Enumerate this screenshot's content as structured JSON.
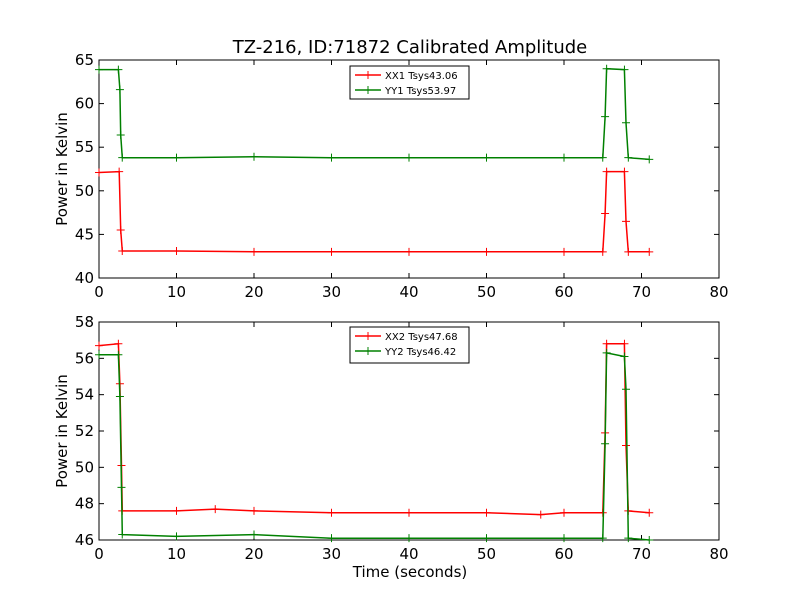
{
  "figure": {
    "title": "TZ-216, ID:71872 Calibrated Amplitude",
    "xlabel": "Time (seconds)"
  },
  "chart_data": [
    {
      "type": "line",
      "title": "TZ-216, ID:71872 Calibrated Amplitude",
      "xlabel": "",
      "ylabel": "Power in Kelvin",
      "xlim": [
        0,
        80
      ],
      "ylim": [
        40,
        65
      ],
      "xticks": [
        "0",
        "10",
        "20",
        "30",
        "40",
        "50",
        "60",
        "70",
        "80"
      ],
      "yticks": [
        "40",
        "45",
        "50",
        "55",
        "60",
        "65"
      ],
      "grid": false,
      "legend_position": "top-center",
      "series": [
        {
          "name": "XX1 Tsys43.06",
          "color": "#ff0000",
          "marker": "plus",
          "points": [
            [
              0,
              52.1
            ],
            [
              2.6,
              52.2
            ],
            [
              2.8,
              45.5
            ],
            [
              3,
              43.1
            ],
            [
              10,
              43.1
            ],
            [
              20,
              43.0
            ],
            [
              30,
              43.0
            ],
            [
              40,
              43.0
            ],
            [
              50,
              43.0
            ],
            [
              60,
              43.0
            ],
            [
              65,
              43.0
            ],
            [
              65.3,
              47.4
            ],
            [
              65.5,
              52.2
            ],
            [
              67.8,
              52.2
            ],
            [
              68,
              46.5
            ],
            [
              68.3,
              43.0
            ],
            [
              71,
              43.0
            ]
          ]
        },
        {
          "name": "YY1 Tsys53.97",
          "color": "#008000",
          "marker": "plus",
          "points": [
            [
              0,
              63.9
            ],
            [
              2.5,
              63.9
            ],
            [
              2.7,
              61.6
            ],
            [
              2.8,
              56.4
            ],
            [
              3,
              53.8
            ],
            [
              10,
              53.8
            ],
            [
              20,
              53.9
            ],
            [
              30,
              53.8
            ],
            [
              40,
              53.8
            ],
            [
              50,
              53.8
            ],
            [
              60,
              53.8
            ],
            [
              65,
              53.8
            ],
            [
              65.3,
              58.5
            ],
            [
              65.5,
              64.0
            ],
            [
              67.8,
              63.9
            ],
            [
              68,
              57.8
            ],
            [
              68.3,
              53.8
            ],
            [
              71,
              53.6
            ]
          ]
        }
      ]
    },
    {
      "type": "line",
      "title": "",
      "xlabel": "Time (seconds)",
      "ylabel": "Power in Kelvin",
      "xlim": [
        0,
        80
      ],
      "ylim": [
        46,
        58
      ],
      "xticks": [
        "0",
        "10",
        "20",
        "30",
        "40",
        "50",
        "60",
        "70",
        "80"
      ],
      "yticks": [
        "46",
        "48",
        "50",
        "52",
        "54",
        "56",
        "58"
      ],
      "grid": false,
      "legend_position": "top-center",
      "series": [
        {
          "name": "XX2 Tsys47.68",
          "color": "#ff0000",
          "marker": "plus",
          "points": [
            [
              0,
              56.7
            ],
            [
              2.5,
              56.8
            ],
            [
              2.7,
              54.6
            ],
            [
              2.9,
              50.1
            ],
            [
              3,
              47.6
            ],
            [
              10,
              47.6
            ],
            [
              15,
              47.7
            ],
            [
              20,
              47.6
            ],
            [
              30,
              47.5
            ],
            [
              40,
              47.5
            ],
            [
              50,
              47.5
            ],
            [
              57,
              47.4
            ],
            [
              60,
              47.5
            ],
            [
              65,
              47.5
            ],
            [
              65.3,
              51.9
            ],
            [
              65.5,
              56.8
            ],
            [
              67.8,
              56.8
            ],
            [
              68,
              51.2
            ],
            [
              68.3,
              47.6
            ],
            [
              71,
              47.5
            ]
          ]
        },
        {
          "name": "YY2 Tsys46.42",
          "color": "#008000",
          "marker": "plus",
          "points": [
            [
              0,
              56.2
            ],
            [
              2.5,
              56.2
            ],
            [
              2.7,
              53.9
            ],
            [
              2.9,
              48.9
            ],
            [
              3,
              46.3
            ],
            [
              10,
              46.2
            ],
            [
              20,
              46.3
            ],
            [
              30,
              46.1
            ],
            [
              40,
              46.1
            ],
            [
              50,
              46.1
            ],
            [
              60,
              46.1
            ],
            [
              65,
              46.1
            ],
            [
              65.3,
              51.3
            ],
            [
              65.5,
              56.3
            ],
            [
              67.8,
              56.1
            ],
            [
              68,
              54.3
            ],
            [
              68.3,
              46.1
            ],
            [
              71,
              46.0
            ]
          ]
        }
      ]
    }
  ]
}
